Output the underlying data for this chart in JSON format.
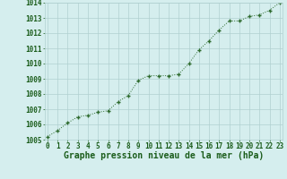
{
  "x": [
    0,
    1,
    2,
    3,
    4,
    5,
    6,
    7,
    8,
    9,
    10,
    11,
    12,
    13,
    14,
    15,
    16,
    17,
    18,
    19,
    20,
    21,
    22,
    23
  ],
  "y": [
    1005.2,
    1005.6,
    1006.1,
    1006.5,
    1006.6,
    1006.8,
    1006.9,
    1007.5,
    1007.9,
    1008.9,
    1009.2,
    1009.2,
    1009.2,
    1009.3,
    1010.0,
    1010.9,
    1011.5,
    1012.2,
    1012.8,
    1012.8,
    1013.1,
    1013.2,
    1013.5,
    1014.0
  ],
  "line_color": "#2d6a2d",
  "marker": "+",
  "marker_color": "#2d6a2d",
  "bg_color": "#d5eeee",
  "grid_color": "#b0d0d0",
  "text_color": "#1a5c1a",
  "xlabel": "Graphe pression niveau de la mer (hPa)",
  "ylim": [
    1005,
    1014
  ],
  "yticks": [
    1005,
    1006,
    1007,
    1008,
    1009,
    1010,
    1011,
    1012,
    1013,
    1014
  ],
  "xticks": [
    0,
    1,
    2,
    3,
    4,
    5,
    6,
    7,
    8,
    9,
    10,
    11,
    12,
    13,
    14,
    15,
    16,
    17,
    18,
    19,
    20,
    21,
    22,
    23
  ],
  "tick_label_fontsize": 5.5,
  "xlabel_fontsize": 7.0
}
